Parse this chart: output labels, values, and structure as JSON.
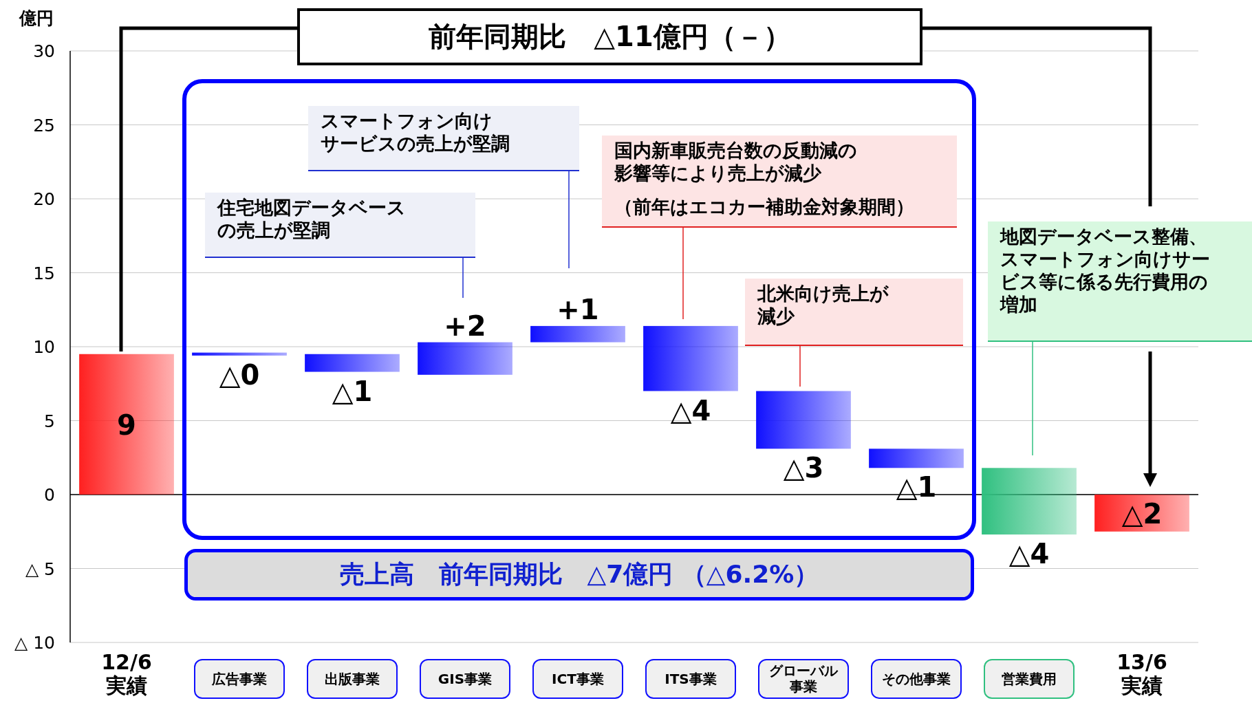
{
  "chart_data": {
    "type": "bar",
    "title": "前年同期比　△11億円（－）",
    "ylabel": "億円",
    "categories": [
      "12/6実績",
      "広告事業",
      "出版事業",
      "GIS事業",
      "ICT事業",
      "ITS事業",
      "グローバル事業",
      "その他事業",
      "営業費用",
      "13/6実績"
    ],
    "values": [
      9.5,
      -0.2,
      -1.2,
      2.2,
      1.1,
      -4.4,
      -3.9,
      -1.3,
      -4.5,
      -2.5
    ],
    "base": [
      0,
      9.6,
      9.5,
      8.1,
      10.3,
      11.4,
      7.0,
      3.1,
      1.8,
      0
    ],
    "colors": [
      "#ff2020",
      "#1010ff",
      "#1010ff",
      "#1010ff",
      "#1010ff",
      "#1010ff",
      "#1010ff",
      "#1010ff",
      "#30c080",
      "#ff2020"
    ],
    "value_labels": [
      "9",
      "△0",
      "△1",
      "+2",
      "+1",
      "△4",
      "△3",
      "△1",
      "△4",
      "△2"
    ],
    "ylim": [
      -10,
      30
    ],
    "yticks": [
      {
        "value": -10,
        "label": "△ 10"
      },
      {
        "value": -5,
        "label": "△ 5"
      },
      0,
      5,
      10,
      15,
      20,
      25,
      30
    ],
    "grid": "y",
    "annotations": [
      "住宅地図データベースの売上が堅調",
      "スマートフォン向け",
      "サービスの売上が堅調",
      "国内新車販売台数の反動減の影響等により売上が減少",
      "（前年はエコカー補助金対象期間）",
      "北米向け売上が減少",
      "地図データベース整備、スマートフォン向けサービス等に係る先行費用の増加",
      "売上高　前年同期比　△7億円 （△6.2%）"
    ]
  }
}
